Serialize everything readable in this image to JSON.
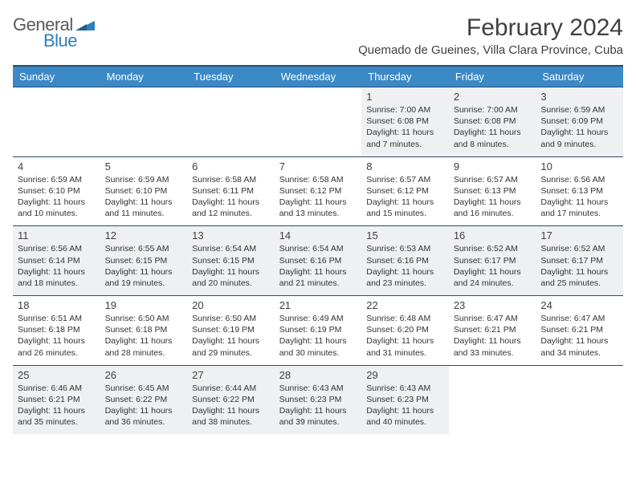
{
  "brand": {
    "name1": "General",
    "name2": "Blue"
  },
  "title": "February 2024",
  "location": "Quemado de Gueines, Villa Clara Province, Cuba",
  "colors": {
    "header_bg": "#3b89c6",
    "header_border": "#2c4d6e",
    "shaded_bg": "#eef0f2",
    "text": "#333333",
    "brand_blue": "#2f7fba"
  },
  "day_headers": [
    "Sunday",
    "Monday",
    "Tuesday",
    "Wednesday",
    "Thursday",
    "Friday",
    "Saturday"
  ],
  "weeks": [
    [
      null,
      null,
      null,
      null,
      {
        "n": "1",
        "sr": "Sunrise: 7:00 AM",
        "ss": "Sunset: 6:08 PM",
        "dl": "Daylight: 11 hours and 7 minutes."
      },
      {
        "n": "2",
        "sr": "Sunrise: 7:00 AM",
        "ss": "Sunset: 6:08 PM",
        "dl": "Daylight: 11 hours and 8 minutes."
      },
      {
        "n": "3",
        "sr": "Sunrise: 6:59 AM",
        "ss": "Sunset: 6:09 PM",
        "dl": "Daylight: 11 hours and 9 minutes."
      }
    ],
    [
      {
        "n": "4",
        "sr": "Sunrise: 6:59 AM",
        "ss": "Sunset: 6:10 PM",
        "dl": "Daylight: 11 hours and 10 minutes."
      },
      {
        "n": "5",
        "sr": "Sunrise: 6:59 AM",
        "ss": "Sunset: 6:10 PM",
        "dl": "Daylight: 11 hours and 11 minutes."
      },
      {
        "n": "6",
        "sr": "Sunrise: 6:58 AM",
        "ss": "Sunset: 6:11 PM",
        "dl": "Daylight: 11 hours and 12 minutes."
      },
      {
        "n": "7",
        "sr": "Sunrise: 6:58 AM",
        "ss": "Sunset: 6:12 PM",
        "dl": "Daylight: 11 hours and 13 minutes."
      },
      {
        "n": "8",
        "sr": "Sunrise: 6:57 AM",
        "ss": "Sunset: 6:12 PM",
        "dl": "Daylight: 11 hours and 15 minutes."
      },
      {
        "n": "9",
        "sr": "Sunrise: 6:57 AM",
        "ss": "Sunset: 6:13 PM",
        "dl": "Daylight: 11 hours and 16 minutes."
      },
      {
        "n": "10",
        "sr": "Sunrise: 6:56 AM",
        "ss": "Sunset: 6:13 PM",
        "dl": "Daylight: 11 hours and 17 minutes."
      }
    ],
    [
      {
        "n": "11",
        "sr": "Sunrise: 6:56 AM",
        "ss": "Sunset: 6:14 PM",
        "dl": "Daylight: 11 hours and 18 minutes."
      },
      {
        "n": "12",
        "sr": "Sunrise: 6:55 AM",
        "ss": "Sunset: 6:15 PM",
        "dl": "Daylight: 11 hours and 19 minutes."
      },
      {
        "n": "13",
        "sr": "Sunrise: 6:54 AM",
        "ss": "Sunset: 6:15 PM",
        "dl": "Daylight: 11 hours and 20 minutes."
      },
      {
        "n": "14",
        "sr": "Sunrise: 6:54 AM",
        "ss": "Sunset: 6:16 PM",
        "dl": "Daylight: 11 hours and 21 minutes."
      },
      {
        "n": "15",
        "sr": "Sunrise: 6:53 AM",
        "ss": "Sunset: 6:16 PM",
        "dl": "Daylight: 11 hours and 23 minutes."
      },
      {
        "n": "16",
        "sr": "Sunrise: 6:52 AM",
        "ss": "Sunset: 6:17 PM",
        "dl": "Daylight: 11 hours and 24 minutes."
      },
      {
        "n": "17",
        "sr": "Sunrise: 6:52 AM",
        "ss": "Sunset: 6:17 PM",
        "dl": "Daylight: 11 hours and 25 minutes."
      }
    ],
    [
      {
        "n": "18",
        "sr": "Sunrise: 6:51 AM",
        "ss": "Sunset: 6:18 PM",
        "dl": "Daylight: 11 hours and 26 minutes."
      },
      {
        "n": "19",
        "sr": "Sunrise: 6:50 AM",
        "ss": "Sunset: 6:18 PM",
        "dl": "Daylight: 11 hours and 28 minutes."
      },
      {
        "n": "20",
        "sr": "Sunrise: 6:50 AM",
        "ss": "Sunset: 6:19 PM",
        "dl": "Daylight: 11 hours and 29 minutes."
      },
      {
        "n": "21",
        "sr": "Sunrise: 6:49 AM",
        "ss": "Sunset: 6:19 PM",
        "dl": "Daylight: 11 hours and 30 minutes."
      },
      {
        "n": "22",
        "sr": "Sunrise: 6:48 AM",
        "ss": "Sunset: 6:20 PM",
        "dl": "Daylight: 11 hours and 31 minutes."
      },
      {
        "n": "23",
        "sr": "Sunrise: 6:47 AM",
        "ss": "Sunset: 6:21 PM",
        "dl": "Daylight: 11 hours and 33 minutes."
      },
      {
        "n": "24",
        "sr": "Sunrise: 6:47 AM",
        "ss": "Sunset: 6:21 PM",
        "dl": "Daylight: 11 hours and 34 minutes."
      }
    ],
    [
      {
        "n": "25",
        "sr": "Sunrise: 6:46 AM",
        "ss": "Sunset: 6:21 PM",
        "dl": "Daylight: 11 hours and 35 minutes."
      },
      {
        "n": "26",
        "sr": "Sunrise: 6:45 AM",
        "ss": "Sunset: 6:22 PM",
        "dl": "Daylight: 11 hours and 36 minutes."
      },
      {
        "n": "27",
        "sr": "Sunrise: 6:44 AM",
        "ss": "Sunset: 6:22 PM",
        "dl": "Daylight: 11 hours and 38 minutes."
      },
      {
        "n": "28",
        "sr": "Sunrise: 6:43 AM",
        "ss": "Sunset: 6:23 PM",
        "dl": "Daylight: 11 hours and 39 minutes."
      },
      {
        "n": "29",
        "sr": "Sunrise: 6:43 AM",
        "ss": "Sunset: 6:23 PM",
        "dl": "Daylight: 11 hours and 40 minutes."
      },
      null,
      null
    ]
  ]
}
